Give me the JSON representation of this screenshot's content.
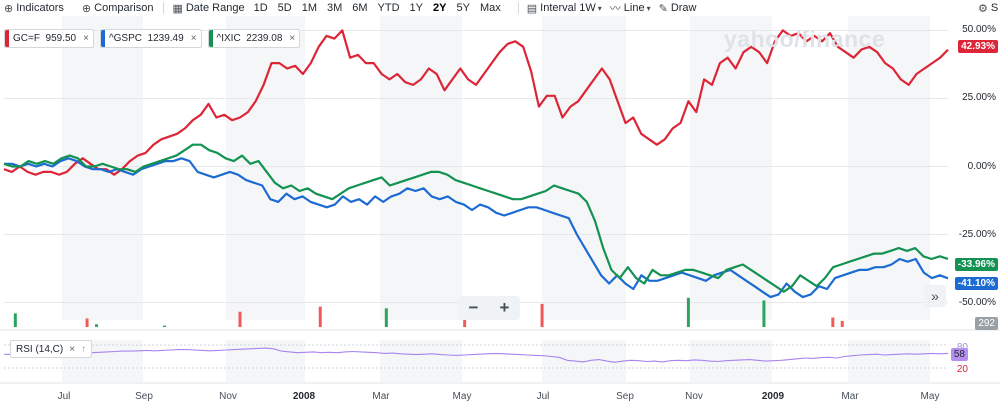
{
  "toolbar": {
    "indicators": "Indicators",
    "comparison": "Comparison",
    "date_range": "Date Range",
    "ranges": [
      "1D",
      "5D",
      "1M",
      "3M",
      "6M",
      "YTD",
      "1Y",
      "2Y",
      "5Y",
      "Max"
    ],
    "active_range": "2Y",
    "interval_label": "Interval",
    "interval_value": "1W",
    "chart_type": "Line",
    "draw": "Draw",
    "settings_partial": "S"
  },
  "legend": [
    {
      "symbol": "GC=F",
      "value": "959.50",
      "color": "#dc2536"
    },
    {
      "symbol": "^GSPC",
      "value": "1239.49",
      "color": "#1c6bd2"
    },
    {
      "symbol": "^IXIC",
      "value": "2239.08",
      "color": "#139251"
    }
  ],
  "watermark": "yahoo/finance",
  "value_tags": {
    "gc": "42.93%",
    "ixic": "-33.96%",
    "gspc": "-41.10%"
  },
  "volume_tag": "292",
  "zoom": {
    "minus": "−",
    "plus": "+"
  },
  "nav_icon": "»",
  "rsi": {
    "label": "RSI (14,C)",
    "upper": "80",
    "lower": "20",
    "value": "58"
  },
  "chart_data": {
    "type": "line",
    "yaxis_ticks": [
      "50.00%",
      "25.00%",
      "0.00%",
      "-25.00%",
      "-50.00%"
    ],
    "x_ticks": [
      "Jul",
      "Sep",
      "Nov",
      "2008",
      "Mar",
      "May",
      "Jul",
      "Sep",
      "Nov",
      "2009",
      "Mar",
      "May"
    ],
    "x_ticks_bold": [
      "2008",
      "2009"
    ],
    "ylim": [
      -52,
      52
    ],
    "series": [
      {
        "name": "GC=F",
        "color": "#dc2536",
        "values": [
          -1,
          -2,
          0,
          -2,
          -3,
          -2,
          -2,
          -3,
          -2,
          1,
          3,
          1,
          -1,
          -1,
          -3,
          -1,
          2,
          4,
          5,
          8,
          10,
          11,
          12,
          14,
          17,
          19,
          23,
          18,
          19,
          17,
          18,
          20,
          24,
          30,
          38,
          38,
          36,
          37,
          34,
          38,
          44,
          48,
          47,
          50,
          40,
          41,
          38,
          38,
          34,
          32,
          34,
          31,
          30,
          32,
          36,
          34,
          28,
          32,
          36,
          32,
          30,
          34,
          38,
          42,
          45,
          46,
          44,
          35,
          22,
          26,
          26,
          18,
          22,
          24,
          28,
          32,
          36,
          32,
          24,
          16,
          18,
          12,
          10,
          8,
          10,
          14,
          16,
          24,
          20,
          32,
          30,
          38,
          40,
          36,
          42,
          44,
          42,
          38,
          46,
          50,
          48,
          49,
          46,
          48,
          46,
          49,
          44,
          42,
          40,
          43,
          44,
          42,
          38,
          36,
          32,
          30,
          34,
          36,
          38,
          40,
          42.93
        ]
      },
      {
        "name": "^GSPC",
        "color": "#1c6bd2",
        "values": [
          1,
          1,
          0,
          1,
          0,
          1,
          0,
          2,
          3,
          2,
          0,
          -1,
          -1,
          -2,
          -1,
          -2,
          -3,
          -1,
          0,
          1,
          2,
          2,
          3,
          2,
          -2,
          -3,
          -4,
          -3,
          -2,
          -3,
          -5,
          -6,
          -7,
          -12,
          -13,
          -10,
          -12,
          -11,
          -13,
          -14,
          -15,
          -14,
          -11,
          -13,
          -12,
          -14,
          -11,
          -13,
          -11,
          -10,
          -8,
          -9,
          -8,
          -11,
          -12,
          -11,
          -13,
          -14,
          -16,
          -14,
          -15,
          -17,
          -18,
          -17,
          -16,
          -15,
          -15,
          -16,
          -17,
          -18,
          -19,
          -25,
          -30,
          -35,
          -40,
          -43,
          -40,
          -43,
          -45,
          -40,
          -42,
          -42,
          -41,
          -40,
          -39,
          -40,
          -41,
          -42,
          -40,
          -39,
          -38,
          -40,
          -42,
          -44,
          -46,
          -48,
          -47,
          -43,
          -46,
          -48,
          -47,
          -44,
          -45,
          -41,
          -40,
          -39,
          -38,
          -38,
          -37,
          -37,
          -36,
          -34,
          -35,
          -34,
          -39,
          -41,
          -40,
          -41.1
        ]
      },
      {
        "name": "^IXIC",
        "color": "#139251",
        "values": [
          1,
          0,
          0,
          2,
          1,
          2,
          1,
          3,
          4,
          3,
          0,
          0,
          1,
          0,
          -1,
          -1,
          -2,
          0,
          1,
          2,
          3,
          4,
          6,
          8,
          8,
          6,
          5,
          3,
          2,
          4,
          1,
          2,
          -2,
          -6,
          -8,
          -7,
          -9,
          -8,
          -10,
          -11,
          -12,
          -10,
          -8,
          -7,
          -6,
          -5,
          -4,
          -7,
          -6,
          -5,
          -4,
          -3,
          -2,
          -2,
          -3,
          -5,
          -6,
          -7,
          -8,
          -9,
          -10,
          -11,
          -12,
          -12,
          -11,
          -10,
          -9,
          -7,
          -8,
          -9,
          -10,
          -13,
          -20,
          -30,
          -38,
          -41,
          -37,
          -41,
          -43,
          -38,
          -40,
          -40,
          -39,
          -38,
          -38,
          -39,
          -40,
          -41,
          -38,
          -37,
          -36,
          -38,
          -40,
          -42,
          -44,
          -46,
          -44,
          -40,
          -42,
          -44,
          -41,
          -37,
          -36,
          -35,
          -34,
          -33,
          -32,
          -32,
          -31,
          -30,
          -31,
          -30,
          -33,
          -34,
          -33,
          -33.96
        ]
      }
    ],
    "volume_bars": [
      {
        "t": 0.012,
        "h": 0.4,
        "color": "#2ea35d"
      },
      {
        "t": 0.088,
        "h": 0.25,
        "color": "#f25a5a"
      },
      {
        "t": 0.098,
        "h": 0.08,
        "color": "#2ea35d"
      },
      {
        "t": 0.17,
        "h": 0.04,
        "color": "#2ea35d"
      },
      {
        "t": 0.25,
        "h": 0.45,
        "color": "#f25a5a"
      },
      {
        "t": 0.335,
        "h": 0.6,
        "color": "#f25a5a"
      },
      {
        "t": 0.405,
        "h": 0.55,
        "color": "#2ea35d"
      },
      {
        "t": 0.488,
        "h": 0.6,
        "color": "#f25a5a"
      },
      {
        "t": 0.57,
        "h": 0.68,
        "color": "#f25a5a"
      },
      {
        "t": 0.725,
        "h": 0.86,
        "color": "#2ea35d"
      },
      {
        "t": 0.805,
        "h": 0.78,
        "color": "#2ea35d"
      },
      {
        "t": 0.878,
        "h": 0.28,
        "color": "#f25a5a"
      },
      {
        "t": 0.888,
        "h": 0.18,
        "color": "#f25a5a"
      }
    ],
    "rsi_values": [
      56,
      55,
      57,
      56,
      58,
      57,
      59,
      58,
      57,
      58,
      59,
      60,
      61,
      62,
      63,
      64,
      64,
      65,
      66,
      65,
      66,
      67,
      68,
      68,
      67,
      66,
      65,
      66,
      67,
      68,
      69,
      70,
      71,
      72,
      70,
      64,
      62,
      60,
      61,
      62,
      60,
      61,
      60,
      62,
      63,
      62,
      61,
      60,
      58,
      59,
      57,
      56,
      55,
      56,
      57,
      55,
      54,
      53,
      54,
      55,
      56,
      57,
      58,
      57,
      56,
      55,
      54,
      53,
      52,
      50,
      48,
      40,
      38,
      36,
      40,
      42,
      38,
      35,
      38,
      40,
      39,
      37,
      38,
      36,
      39,
      40,
      39,
      41,
      40,
      38,
      37,
      39,
      40,
      41,
      42,
      40,
      38,
      39,
      40,
      42,
      44,
      46,
      45,
      47,
      48,
      46,
      50,
      52,
      54,
      55,
      56,
      54,
      55,
      56,
      57,
      56,
      57,
      58,
      57,
      58
    ]
  }
}
